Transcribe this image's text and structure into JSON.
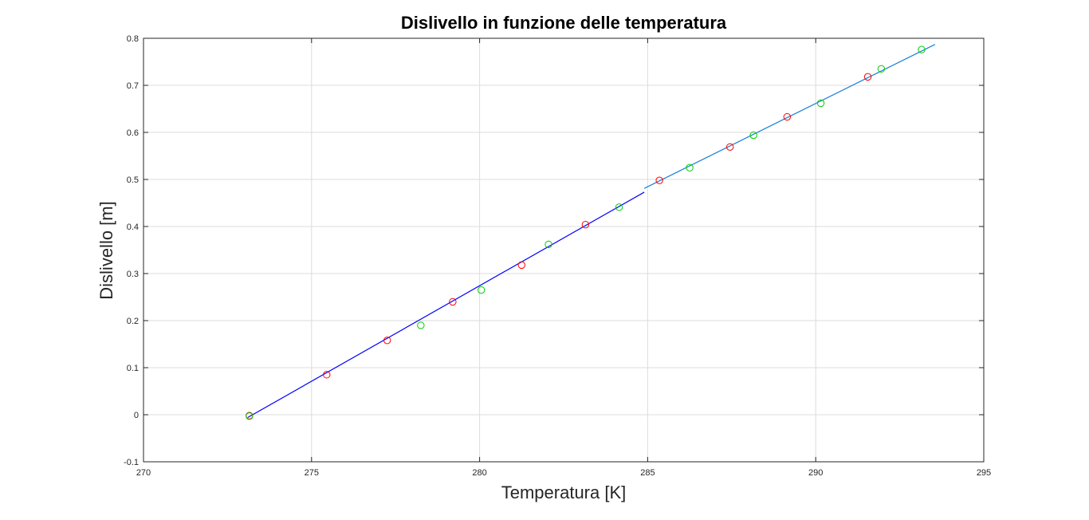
{
  "chart_data": {
    "type": "scatter",
    "title": "Dislivello in funzione delle temperatura",
    "xlabel": "Temperatura [K]",
    "ylabel": "Dislivello [m]",
    "xlim": [
      270,
      295
    ],
    "ylim": [
      -0.1,
      0.8
    ],
    "xticks": [
      270,
      275,
      280,
      285,
      290,
      295
    ],
    "yticks": [
      -0.1,
      0,
      0.1,
      0.2,
      0.3,
      0.4,
      0.5,
      0.6,
      0.7,
      0.8
    ],
    "xtick_labels": [
      "270",
      "275",
      "280",
      "285",
      "290",
      "295"
    ],
    "ytick_labels": [
      "-0.1",
      "0",
      "0.1",
      "0.2",
      "0.3",
      "0.4",
      "0.5",
      "0.6",
      "0.7",
      "0.8"
    ],
    "grid": true,
    "legend": "none",
    "series": [
      {
        "color": "#ff0000",
        "marker": "circle",
        "x": [
          273.15,
          275.45,
          277.25,
          279.2,
          281.25,
          283.15,
          285.35,
          287.45,
          289.15,
          291.55
        ],
        "y": [
          -0.002,
          0.085,
          0.158,
          0.24,
          0.318,
          0.404,
          0.498,
          0.569,
          0.633,
          0.718
        ]
      },
      {
        "color": "#00cc00",
        "marker": "circle",
        "x": [
          273.15,
          278.25,
          280.05,
          282.05,
          284.15,
          286.25,
          288.15,
          290.15,
          291.95,
          293.15
        ],
        "y": [
          -0.003,
          0.19,
          0.265,
          0.362,
          0.441,
          0.525,
          0.594,
          0.662,
          0.735,
          0.776
        ]
      },
      {
        "color": "#0000ff",
        "marker": "line",
        "x": [
          273.1,
          284.9
        ],
        "y": [
          -0.006,
          0.473
        ]
      },
      {
        "color": "#1a7fd8",
        "marker": "line",
        "x": [
          284.9,
          293.55
        ],
        "y": [
          0.481,
          0.787
        ]
      }
    ]
  }
}
